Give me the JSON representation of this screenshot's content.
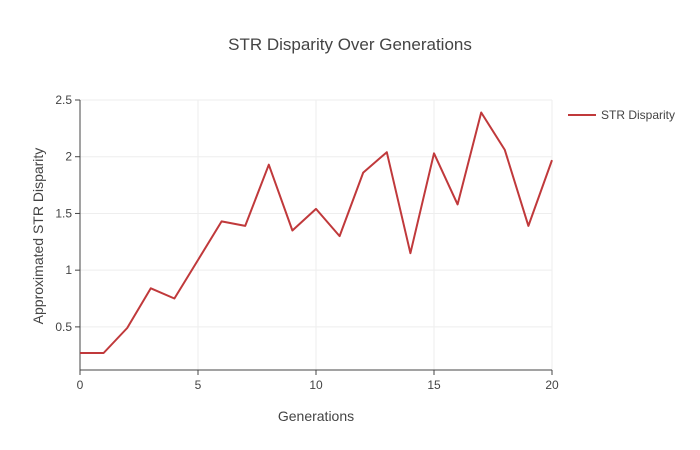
{
  "chart_data": {
    "type": "line",
    "title": "STR Disparity Over Generations",
    "xlabel": "Generations",
    "ylabel": "Approximated STR Disparity",
    "xlim": [
      0,
      20
    ],
    "ylim": [
      0.12,
      2.5
    ],
    "xticks": [
      0,
      5,
      10,
      15,
      20
    ],
    "yticks": [
      0.5,
      1,
      1.5,
      2,
      2.5
    ],
    "xtick_labels": [
      "0",
      "5",
      "10",
      "15",
      "20"
    ],
    "ytick_labels": [
      "0.5",
      "1",
      "1.5",
      "2",
      "2.5"
    ],
    "grid": true,
    "legend": "top-right",
    "series": [
      {
        "name": "STR Disparity",
        "color": "#c0393b",
        "x": [
          0,
          1,
          2,
          3,
          4,
          5,
          6,
          7,
          8,
          9,
          10,
          11,
          12,
          13,
          14,
          15,
          16,
          17,
          18,
          19,
          20
        ],
        "y": [
          0.27,
          0.27,
          0.49,
          0.84,
          0.75,
          1.09,
          1.43,
          1.39,
          1.93,
          1.35,
          1.54,
          1.3,
          1.86,
          2.04,
          1.15,
          2.03,
          1.58,
          2.39,
          2.06,
          1.39,
          1.97
        ]
      }
    ]
  }
}
